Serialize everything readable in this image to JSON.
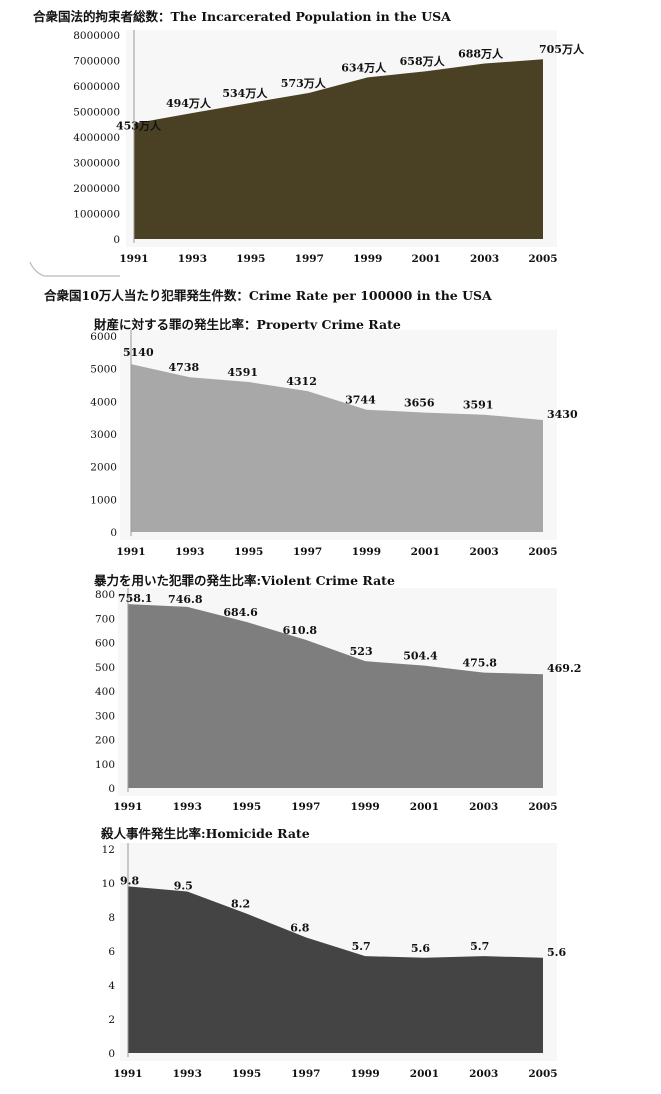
{
  "page": {
    "section_title": "合衆国10万人当たり犯罪発生件数：Crime Rate per 100000 in the USA"
  },
  "chart_data": [
    {
      "id": "prison",
      "type": "area",
      "title": "合衆国法的拘束者総数：The Incarcerated Population in the USA",
      "x": [
        "1991",
        "1993",
        "1995",
        "1997",
        "1999",
        "2001",
        "2003",
        "2005"
      ],
      "values": [
        4530000,
        4940000,
        5340000,
        5730000,
        6340000,
        6580000,
        6880000,
        7050000
      ],
      "data_labels": [
        "453万人",
        "494万人",
        "534万人",
        "573万人",
        "634万人",
        "658万人",
        "688万人",
        "705万人"
      ],
      "ylim": [
        0,
        8000000
      ],
      "yticks": [
        "0",
        "1000000",
        "2000000",
        "3000000",
        "4000000",
        "5000000",
        "6000000",
        "7000000",
        "8000000"
      ],
      "grid": false,
      "color": "#4a4125"
    },
    {
      "id": "property",
      "type": "area",
      "title": "財産に対する罪の発生比率：Property Crime Rate",
      "x": [
        "1991",
        "1993",
        "1995",
        "1997",
        "1999",
        "2001",
        "2003",
        "2005"
      ],
      "values": [
        5140,
        4738,
        4591,
        4312,
        3744,
        3656,
        3591,
        3430
      ],
      "data_labels": [
        "5140",
        "4738",
        "4591",
        "4312",
        "3744",
        "3656",
        "3591",
        "3430"
      ],
      "ylim": [
        0,
        6000
      ],
      "yticks": [
        "0",
        "1000",
        "2000",
        "3000",
        "4000",
        "5000",
        "6000"
      ],
      "grid": false,
      "color": "#a8a8a8"
    },
    {
      "id": "violent",
      "type": "area",
      "title": "暴力を用いた犯罪の発生比率:Violent Crime Rate",
      "x": [
        "1991",
        "1993",
        "1995",
        "1997",
        "1999",
        "2001",
        "2003",
        "2005"
      ],
      "values": [
        758.1,
        746.8,
        684.6,
        610.8,
        523,
        504.4,
        475.8,
        469.2
      ],
      "data_labels": [
        "758.1",
        "746.8",
        "684.6",
        "610.8",
        "523",
        "504.4",
        "475.8",
        "469.2"
      ],
      "ylim": [
        0,
        800
      ],
      "yticks": [
        "0",
        "100",
        "200",
        "300",
        "400",
        "500",
        "600",
        "700",
        "800"
      ],
      "grid": false,
      "color": "#7e7e7e"
    },
    {
      "id": "homicide",
      "type": "area",
      "title": "殺人事件発生比率:Homicide Rate",
      "x": [
        "1991",
        "1993",
        "1995",
        "1997",
        "1999",
        "2001",
        "2003",
        "2005"
      ],
      "values": [
        9.8,
        9.5,
        8.2,
        6.8,
        5.7,
        5.6,
        5.7,
        5.6
      ],
      "data_labels": [
        "9.8",
        "9.5",
        "8.2",
        "6.8",
        "5.7",
        "5.6",
        "5.7",
        "5.6"
      ],
      "ylim": [
        0,
        12
      ],
      "yticks": [
        "0",
        "2",
        "4",
        "6",
        "8",
        "10",
        "12"
      ],
      "grid": false,
      "color": "#444444"
    }
  ]
}
